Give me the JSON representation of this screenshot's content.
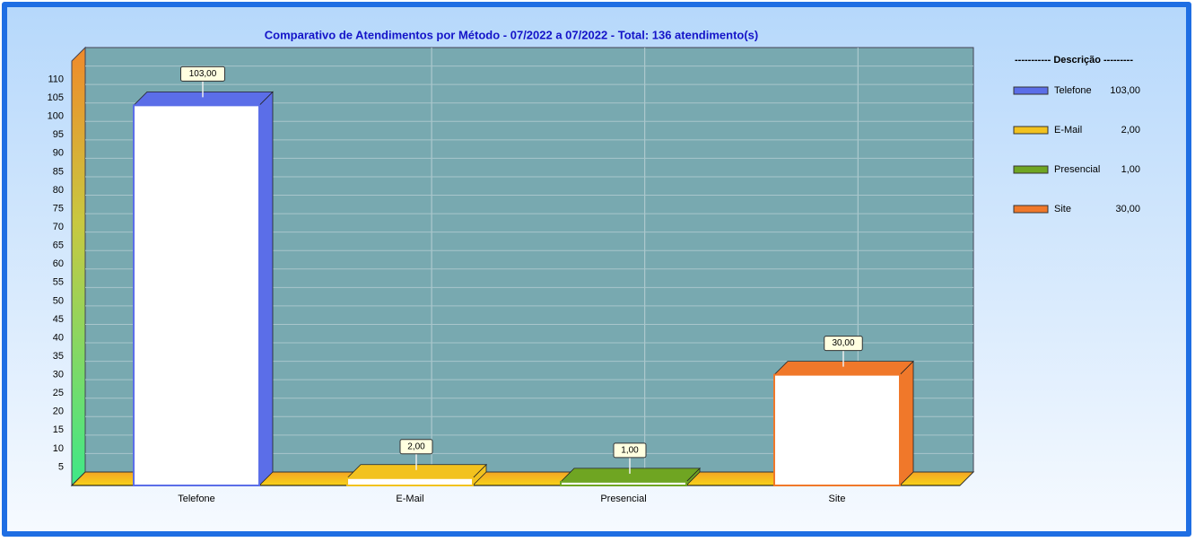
{
  "chart_data": {
    "type": "bar",
    "title": "Comparativo de Atendimentos por Método - 07/2022 a 07/2022 - Total: 136 atendimento(s)",
    "categories": [
      "Telefone",
      "E-Mail",
      "Presencial",
      "Site"
    ],
    "values": [
      103,
      2,
      1,
      30
    ],
    "value_labels": [
      "103,00",
      "2,00",
      "1,00",
      "30,00"
    ],
    "colors": [
      "#5b6ee8",
      "#f2c21e",
      "#6fa522",
      "#f0782a"
    ],
    "ylim": [
      0,
      115
    ],
    "yticks": [
      5,
      10,
      15,
      20,
      25,
      30,
      35,
      40,
      45,
      50,
      55,
      60,
      65,
      70,
      75,
      80,
      85,
      90,
      95,
      100,
      105,
      110
    ],
    "grid": true,
    "legend_title": "----------- Descrição ---------",
    "legend": "right"
  }
}
